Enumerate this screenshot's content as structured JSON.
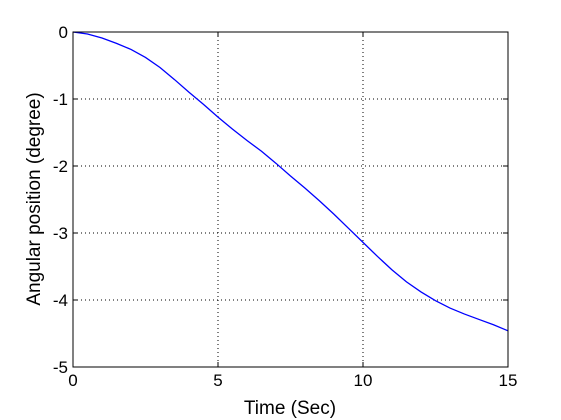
{
  "chart_data": {
    "type": "line",
    "title": "",
    "xlabel": "Time (Sec)",
    "ylabel": "Angular position (degree)",
    "xlim": [
      0,
      15
    ],
    "ylim": [
      -5,
      0
    ],
    "xticks": [
      0,
      5,
      10,
      15
    ],
    "yticks": [
      0,
      -1,
      -2,
      -3,
      -4,
      -5
    ],
    "xtick_labels": [
      "0",
      "5",
      "10",
      "15"
    ],
    "ytick_labels": [
      "0",
      "-1",
      "-2",
      "-3",
      "-4",
      "-5"
    ],
    "grid": true,
    "line_color": "#0000ff",
    "series": [
      {
        "x": [
          0,
          0.5,
          1,
          1.5,
          2,
          2.5,
          3,
          3.5,
          4,
          4.5,
          5,
          5.5,
          6,
          6.5,
          7,
          7.5,
          8,
          8.5,
          9,
          9.5,
          10,
          10.5,
          11,
          11.5,
          12,
          12.5,
          13,
          13.5,
          14,
          14.5,
          15
        ],
        "y": [
          0,
          -0.03,
          -0.09,
          -0.17,
          -0.26,
          -0.38,
          -0.53,
          -0.71,
          -0.9,
          -1.08,
          -1.27,
          -1.45,
          -1.62,
          -1.78,
          -1.96,
          -2.15,
          -2.33,
          -2.52,
          -2.72,
          -2.93,
          -3.14,
          -3.35,
          -3.55,
          -3.73,
          -3.88,
          -4.01,
          -4.12,
          -4.21,
          -4.29,
          -4.37,
          -4.46
        ]
      }
    ]
  }
}
